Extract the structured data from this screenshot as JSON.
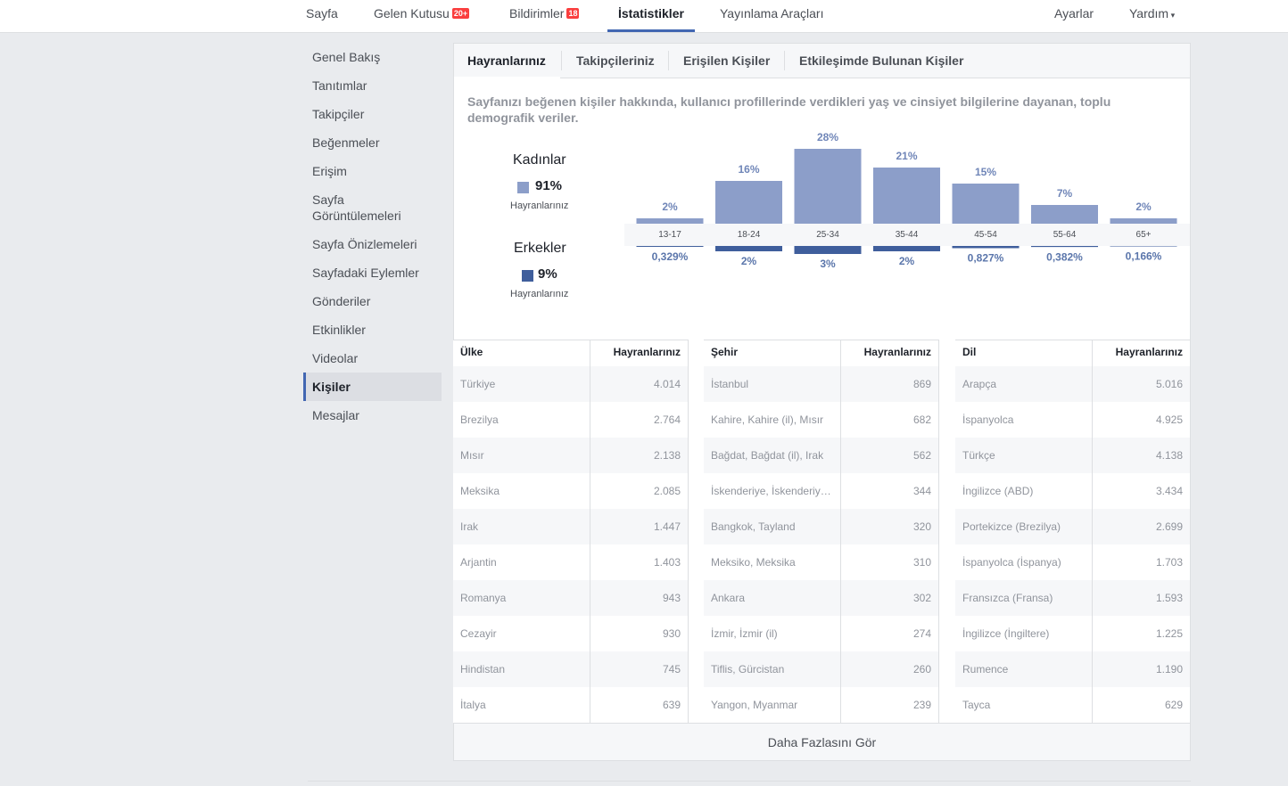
{
  "nav": {
    "items": [
      {
        "label": "Sayfa"
      },
      {
        "label": "Gelen Kutusu",
        "badge": "20+"
      },
      {
        "label": "Bildirimler",
        "badge": "18"
      },
      {
        "label": "İstatistikler"
      },
      {
        "label": "Yayınlama Araçları"
      }
    ],
    "right": [
      "Ayarlar",
      "Yardım"
    ]
  },
  "sidebar": {
    "items": [
      "Genel Bakış",
      "Tanıtımlar",
      "Takipçiler",
      "Beğenmeler",
      "Erişim",
      "Sayfa Görüntülemeleri",
      "Sayfa Önizlemeleri",
      "Sayfadaki Eylemler",
      "Gönderiler",
      "Etkinlikler",
      "Videolar",
      "Kişiler",
      "Mesajlar"
    ]
  },
  "tabs": [
    "Hayranlarınız",
    "Takipçileriniz",
    "Erişilen Kişiler",
    "Etkileşimde Bulunan Kişiler"
  ],
  "description": "Sayfanızı beğenen kişiler hakkında, kullanıcı profillerinde verdikleri yaş ve cinsiyet bilgilerine dayanan, toplu demografik veriler.",
  "chart_data": {
    "type": "bar",
    "categories": [
      "13-17",
      "18-24",
      "25-34",
      "35-44",
      "45-54",
      "55-64",
      "65+"
    ],
    "series": [
      {
        "name": "Kadınlar",
        "share": "91%",
        "caption": "Hayranlarınız",
        "color": "#8c9ec9",
        "values": [
          2,
          16,
          28,
          21,
          15,
          7,
          2
        ],
        "value_labels": [
          "2%",
          "16%",
          "28%",
          "21%",
          "15%",
          "7%",
          "2%"
        ]
      },
      {
        "name": "Erkekler",
        "share": "9%",
        "caption": "Hayranlarınız",
        "color": "#3f5e9c",
        "values": [
          0.329,
          2,
          3,
          2,
          0.827,
          0.382,
          0.166
        ],
        "value_labels": [
          "0,329%",
          "2%",
          "3%",
          "2%",
          "0,827%",
          "0,382%",
          "0,166%"
        ]
      }
    ]
  },
  "tables": [
    {
      "headers": [
        "Ülke",
        "Hayranlarınız"
      ],
      "rows": [
        [
          "Türkiye",
          "4.014"
        ],
        [
          "Brezilya",
          "2.764"
        ],
        [
          "Mısır",
          "2.138"
        ],
        [
          "Meksika",
          "2.085"
        ],
        [
          "Irak",
          "1.447"
        ],
        [
          "Arjantin",
          "1.403"
        ],
        [
          "Romanya",
          "943"
        ],
        [
          "Cezayir",
          "930"
        ],
        [
          "Hindistan",
          "745"
        ],
        [
          "İtalya",
          "639"
        ]
      ]
    },
    {
      "headers": [
        "Şehir",
        "Hayranlarınız"
      ],
      "rows": [
        [
          "İstanbul",
          "869"
        ],
        [
          "Kahire, Kahire (il), Mısır",
          "682"
        ],
        [
          "Bağdat, Bağdat (il), Irak",
          "562"
        ],
        [
          "İskenderiye, İskenderiy…",
          "344"
        ],
        [
          "Bangkok, Tayland",
          "320"
        ],
        [
          "Meksiko, Meksika",
          "310"
        ],
        [
          "Ankara",
          "302"
        ],
        [
          "İzmir, İzmir (il)",
          "274"
        ],
        [
          "Tiflis, Gürcistan",
          "260"
        ],
        [
          "Yangon, Myanmar",
          "239"
        ]
      ]
    },
    {
      "headers": [
        "Dil",
        "Hayranlarınız"
      ],
      "rows": [
        [
          "Arapça",
          "5.016"
        ],
        [
          "İspanyolca",
          "4.925"
        ],
        [
          "Türkçe",
          "4.138"
        ],
        [
          "İngilizce (ABD)",
          "3.434"
        ],
        [
          "Portekizce (Brezilya)",
          "2.699"
        ],
        [
          "İspanyolca (İspanya)",
          "1.703"
        ],
        [
          "Fransızca (Fransa)",
          "1.593"
        ],
        [
          "İngilizce (İngiltere)",
          "1.225"
        ],
        [
          "Rumence",
          "1.190"
        ],
        [
          "Tayca",
          "629"
        ]
      ]
    }
  ],
  "more": "Daha Fazlasını Gör"
}
